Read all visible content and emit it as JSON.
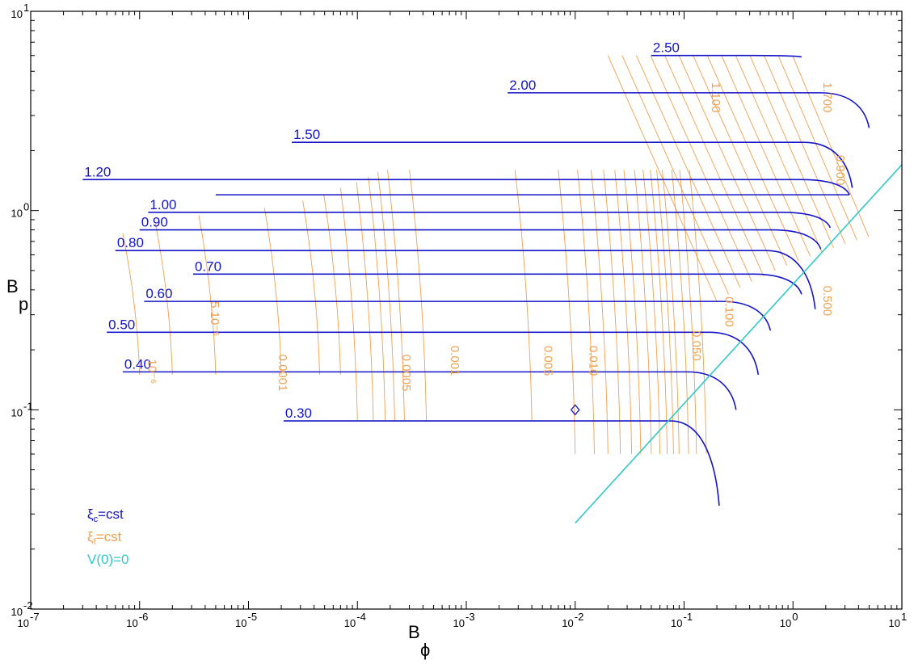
{
  "chart_data": {
    "type": "line",
    "xscale": "log",
    "yscale": "log",
    "xlim": [
      1e-07,
      10
    ],
    "ylim": [
      0.01,
      10
    ],
    "x_ticks": [
      {
        "v": 1e-07,
        "base": "10",
        "exp": "-7"
      },
      {
        "v": 1e-06,
        "base": "10",
        "exp": "-6"
      },
      {
        "v": 1e-05,
        "base": "10",
        "exp": "-5"
      },
      {
        "v": 0.0001,
        "base": "10",
        "exp": "-4"
      },
      {
        "v": 0.001,
        "base": "10",
        "exp": "-3"
      },
      {
        "v": 0.01,
        "base": "10",
        "exp": "-2"
      },
      {
        "v": 0.1,
        "base": "10",
        "exp": "-1"
      },
      {
        "v": 1,
        "base": "10",
        "exp": "0"
      },
      {
        "v": 10,
        "base": "10",
        "exp": "1"
      }
    ],
    "y_ticks": [
      {
        "v": 0.01,
        "base": "10",
        "exp": "-2"
      },
      {
        "v": 0.1,
        "base": "10",
        "exp": "-1"
      },
      {
        "v": 1,
        "base": "10",
        "exp": "0"
      },
      {
        "v": 10,
        "base": "10",
        "exp": "1"
      }
    ],
    "xlabel": {
      "main": "B",
      "sub": "ϕ"
    },
    "ylabel": {
      "main": "B",
      "sub": "p"
    },
    "colors": {
      "xi_c": "#1414c8",
      "xi_f": "#f0a050",
      "v0": "#30c8c8"
    },
    "xi_c_series": [
      {
        "label": "2.50",
        "by": 6.0,
        "x0": 0.05,
        "xe": 1.2,
        "ye": 5.9
      },
      {
        "label": "2.00",
        "by": 3.9,
        "x0": 0.0024,
        "xe": 5.0,
        "ye": 2.6
      },
      {
        "label": "1.50",
        "by": 2.2,
        "x0": 2.5e-05,
        "xe": 3.5,
        "ye": 1.3
      },
      {
        "label": "1.20",
        "by": 1.43,
        "x0": 3e-07,
        "xe": 3.3,
        "ye": 1.2
      },
      {
        "label": "",
        "by": 1.2,
        "x0": 5e-06,
        "xe": 3.3,
        "ye": 1.2
      },
      {
        "label": "1.00",
        "by": 0.98,
        "x0": 1.2e-06,
        "xe": 2.2,
        "ye": 0.82
      },
      {
        "label": "0.90",
        "by": 0.8,
        "x0": 1e-06,
        "xe": 1.8,
        "ye": 0.64
      },
      {
        "label": "0.80",
        "by": 0.63,
        "x0": 6e-07,
        "xe": 1.6,
        "ye": 0.32
      },
      {
        "label": "0.70",
        "by": 0.48,
        "x0": 3.1e-06,
        "xe": 1.2,
        "ye": 0.38
      },
      {
        "label": "0.60",
        "by": 0.35,
        "x0": 1.1e-06,
        "xe": 0.62,
        "ye": 0.25
      },
      {
        "label": "0.50",
        "by": 0.245,
        "x0": 5e-07,
        "xe": 0.48,
        "ye": 0.15
      },
      {
        "label": "0.40",
        "by": 0.155,
        "x0": 7e-07,
        "xe": 0.3,
        "ye": 0.1
      },
      {
        "label": "0.30",
        "by": 0.088,
        "x0": 2.1e-05,
        "xe": 0.21,
        "ye": 0.033
      }
    ],
    "xi_f_labels": [
      {
        "text": "10⁻⁶",
        "x": 1.2e-06,
        "y": 0.18
      },
      {
        "text": "5.10⁻⁵",
        "x": 4.5e-06,
        "y": 0.35
      },
      {
        "text": "0.0001",
        "x": 1.9e-05,
        "y": 0.19
      },
      {
        "text": "0.0005",
        "x": 0.00026,
        "y": 0.19
      },
      {
        "text": "0.001",
        "x": 0.00072,
        "y": 0.21
      },
      {
        "text": "0.005",
        "x": 0.0052,
        "y": 0.21
      },
      {
        "text": "0.010",
        "x": 0.0135,
        "y": 0.21
      },
      {
        "text": "0.050",
        "x": 0.12,
        "y": 0.25
      },
      {
        "text": "0.100",
        "x": 0.24,
        "y": 0.37
      },
      {
        "text": "0.500",
        "x": 1.9,
        "y": 0.42
      },
      {
        "text": "0.900",
        "x": 2.5,
        "y": 1.9
      },
      {
        "text": "1.100",
        "x": 0.18,
        "y": 4.4
      },
      {
        "text": "1.700",
        "x": 1.9,
        "y": 4.4
      }
    ],
    "marker": {
      "x": 0.01,
      "y": 0.1,
      "shape": "diamond"
    },
    "v0_line": {
      "from": [
        0.01,
        0.027
      ],
      "to": [
        10,
        1.7
      ]
    },
    "legend": [
      {
        "sym": "ξ",
        "sub": "c",
        "text": "=cst",
        "color": "#1414c8"
      },
      {
        "sym": "ξ",
        "sub": "f",
        "text": "=cst",
        "color": "#f0a050"
      },
      {
        "sym": "",
        "sub": "",
        "text": "V(0)=0",
        "color": "#30c8c8"
      }
    ],
    "legend_position": "bottom-left",
    "grid": false
  }
}
